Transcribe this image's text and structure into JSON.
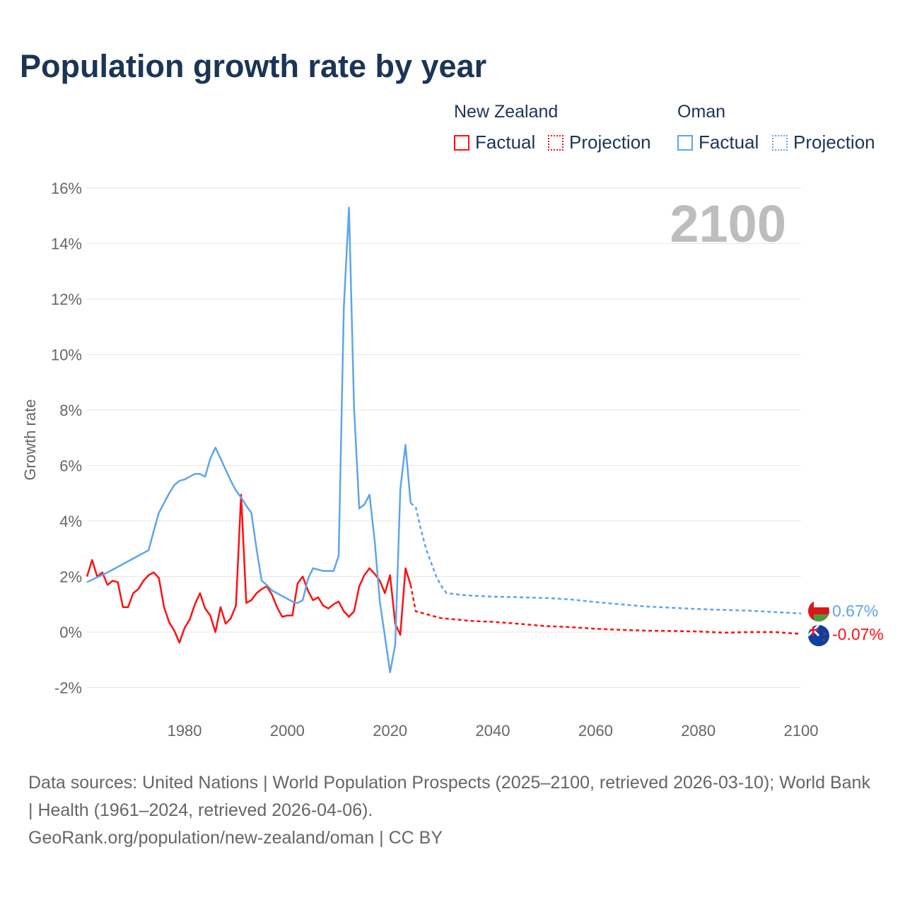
{
  "title": "Population growth rate by year",
  "legend": {
    "groups": [
      {
        "country": "New Zealand",
        "factual": "Factual",
        "projection": "Projection",
        "color": "#ff1010"
      },
      {
        "country": "Oman",
        "factual": "Factual",
        "projection": "Projection",
        "color": "#5ea5ea"
      }
    ]
  },
  "year_watermark": "2100",
  "end_labels": {
    "oman": "0.67%",
    "new_zealand": "-0.07%"
  },
  "footer": {
    "sources": "Data sources: United Nations | World Population Prospects (2025–2100, retrieved 2026-03-10); World Bank | Health (1961–2024, retrieved 2026-04-06).",
    "link": "GeoRank.org/population/new-zealand/oman | CC BY"
  },
  "chart_data": {
    "type": "line",
    "title": "Population growth rate by year",
    "xlabel": "",
    "ylabel": "Growth rate",
    "xlim": [
      1961,
      2100
    ],
    "ylim": [
      -3,
      16
    ],
    "x_ticks": [
      1980,
      2000,
      2020,
      2040,
      2060,
      2080,
      2100
    ],
    "y_ticks": [
      -2,
      0,
      2,
      4,
      6,
      8,
      10,
      12,
      14,
      16
    ],
    "y_tick_labels": [
      "-2%",
      "0%",
      "2%",
      "4%",
      "6%",
      "8%",
      "10%",
      "12%",
      "14%",
      "16%"
    ],
    "grid": true,
    "legend_position": "top-right",
    "series": [
      {
        "name": "New Zealand Factual",
        "color": "#ff1010",
        "style": "solid",
        "x": [
          1961,
          1962,
          1963,
          1964,
          1965,
          1966,
          1967,
          1968,
          1969,
          1970,
          1971,
          1972,
          1973,
          1974,
          1975,
          1976,
          1977,
          1978,
          1979,
          1980,
          1981,
          1982,
          1983,
          1984,
          1985,
          1986,
          1987,
          1988,
          1989,
          1990,
          1991,
          1992,
          1993,
          1994,
          1995,
          1996,
          1997,
          1998,
          1999,
          2000,
          2001,
          2002,
          2003,
          2004,
          2005,
          2006,
          2007,
          2008,
          2009,
          2010,
          2011,
          2012,
          2013,
          2014,
          2015,
          2016,
          2017,
          2018,
          2019,
          2020,
          2021,
          2022,
          2023,
          2024
        ],
        "y": [
          2.0,
          2.6,
          2.0,
          2.15,
          1.7,
          1.85,
          1.8,
          0.9,
          0.9,
          1.4,
          1.55,
          1.85,
          2.05,
          2.15,
          1.95,
          0.9,
          0.35,
          0.05,
          -0.38,
          0.15,
          0.45,
          1.0,
          1.4,
          0.85,
          0.6,
          0.0,
          0.9,
          0.3,
          0.5,
          0.95,
          4.95,
          1.05,
          1.15,
          1.4,
          1.55,
          1.65,
          1.35,
          0.9,
          0.55,
          0.6,
          0.6,
          1.75,
          2.0,
          1.5,
          1.15,
          1.25,
          0.95,
          0.85,
          1.0,
          1.1,
          0.75,
          0.55,
          0.75,
          1.65,
          2.05,
          2.3,
          2.1,
          1.85,
          1.4,
          2.05,
          0.3,
          -0.1,
          2.3,
          1.7
        ]
      },
      {
        "name": "New Zealand Projection",
        "color": "#ff1010",
        "style": "dotted",
        "x": [
          2024,
          2025,
          2026,
          2028,
          2030,
          2033,
          2036,
          2040,
          2045,
          2050,
          2055,
          2060,
          2065,
          2070,
          2075,
          2080,
          2085,
          2090,
          2095,
          2100
        ],
        "y": [
          1.7,
          0.75,
          0.7,
          0.6,
          0.5,
          0.45,
          0.4,
          0.37,
          0.3,
          0.22,
          0.18,
          0.12,
          0.08,
          0.05,
          0.04,
          0.02,
          -0.02,
          0.0,
          0.0,
          -0.07
        ]
      },
      {
        "name": "Oman Factual",
        "color": "#5ea5ea",
        "style": "solid",
        "x": [
          1961,
          1965,
          1970,
          1973,
          1974,
          1975,
          1976,
          1977,
          1978,
          1979,
          1980,
          1981,
          1982,
          1983,
          1984,
          1985,
          1986,
          1987,
          1988,
          1989,
          1990,
          1991,
          1992,
          1993,
          1994,
          1995,
          1996,
          1997,
          1998,
          1999,
          2000,
          2001,
          2002,
          2003,
          2004,
          2005,
          2006,
          2007,
          2008,
          2009,
          2010,
          2011,
          2012,
          2013,
          2014,
          2015,
          2016,
          2017,
          2018,
          2019,
          2020,
          2021,
          2022,
          2023,
          2024
        ],
        "y": [
          1.8,
          2.15,
          2.65,
          2.95,
          3.65,
          4.3,
          4.65,
          5.0,
          5.3,
          5.45,
          5.5,
          5.6,
          5.7,
          5.7,
          5.6,
          6.25,
          6.65,
          6.25,
          5.85,
          5.45,
          5.1,
          4.85,
          4.55,
          4.3,
          3.0,
          1.85,
          1.7,
          1.5,
          1.4,
          1.3,
          1.2,
          1.1,
          1.05,
          1.15,
          1.9,
          2.3,
          2.25,
          2.2,
          2.2,
          2.2,
          2.75,
          11.7,
          15.3,
          8.05,
          4.45,
          4.6,
          4.95,
          3.3,
          1.1,
          -0.15,
          -1.45,
          -0.45,
          5.15,
          6.75,
          4.65
        ]
      },
      {
        "name": "Oman Projection",
        "color": "#5ea5ea",
        "style": "dotted",
        "x": [
          2024,
          2025,
          2026,
          2027,
          2028,
          2029,
          2030,
          2031,
          2035,
          2040,
          2050,
          2055,
          2060,
          2070,
          2080,
          2090,
          2100
        ],
        "y": [
          4.65,
          4.5,
          3.7,
          3.0,
          2.5,
          2.0,
          1.65,
          1.4,
          1.32,
          1.28,
          1.23,
          1.18,
          1.08,
          0.92,
          0.83,
          0.77,
          0.67
        ]
      }
    ]
  }
}
